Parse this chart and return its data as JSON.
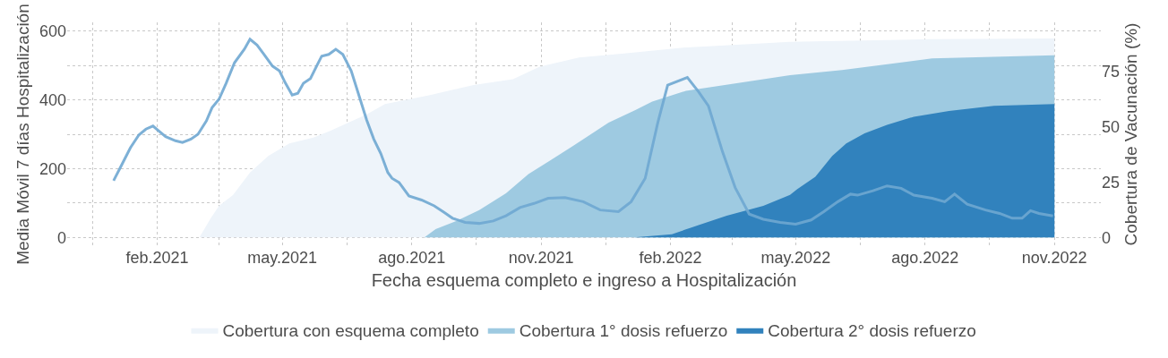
{
  "chart_data": {
    "type": "area",
    "xlabel": "Fecha esquema completo e ingreso a Hospitalización",
    "ylabel": "Media Móvil 7 días Hospitalización",
    "y2label": "Cobertura de Vacunación (%)",
    "xlim": [
      "2020-11-29",
      "2022-12-04"
    ],
    "xticks": [
      {
        "value": "2020-12-17",
        "label": null
      },
      {
        "value": "2021-02-01",
        "label": "feb.2021"
      },
      {
        "value": "2021-03-17",
        "label": null
      },
      {
        "value": "2021-05-01",
        "label": "may.2021"
      },
      {
        "value": "2021-06-16",
        "label": null
      },
      {
        "value": "2021-08-01",
        "label": "ago.2021"
      },
      {
        "value": "2021-09-16",
        "label": null
      },
      {
        "value": "2021-11-01",
        "label": "nov.2021"
      },
      {
        "value": "2021-12-17",
        "label": null
      },
      {
        "value": "2022-02-01",
        "label": "feb.2022"
      },
      {
        "value": "2022-03-17",
        "label": null
      },
      {
        "value": "2022-05-01",
        "label": "may.2022"
      },
      {
        "value": "2022-06-16",
        "label": null
      },
      {
        "value": "2022-08-01",
        "label": "ago.2022"
      },
      {
        "value": "2022-09-16",
        "label": null
      },
      {
        "value": "2022-11-01",
        "label": "nov.2022"
      }
    ],
    "ylim": [
      -25,
      625
    ],
    "yticks": [
      0,
      {
        "value": 100,
        "label": null
      },
      200,
      {
        "value": 300,
        "label": null
      },
      400,
      {
        "value": 500,
        "label": null
      },
      600
    ],
    "y2lim": [
      -3.9,
      97.1
    ],
    "y2ticks": [
      0,
      25,
      50,
      75
    ],
    "grid": true,
    "line_style": "solid",
    "legend": "bottom",
    "series": [
      {
        "name": "Cobertura con esquema completo",
        "axis": "y2",
        "color": "#eef4fa",
        "x": [
          "2021-03-03",
          "2021-03-11",
          "2021-03-17",
          "2021-03-27",
          "2021-04-08",
          "2021-04-21",
          "2021-05-06",
          "2021-05-23",
          "2021-06-04",
          "2021-06-17",
          "2021-06-30",
          "2021-07-13",
          "2021-08-14",
          "2021-09-14",
          "2021-10-12",
          "2021-10-31",
          "2021-11-28",
          "2021-12-30",
          "2022-02-10",
          "2022-04-27",
          "2022-08-04",
          "2022-11-01"
        ],
        "values": [
          0,
          8.6,
          14.3,
          19.2,
          29.3,
          36.8,
          42.5,
          45.1,
          48.1,
          51.9,
          55.6,
          60.2,
          64.3,
          68.8,
          71.4,
          77.1,
          81.2,
          83.1,
          85.7,
          88.3,
          89.5,
          89.8
        ]
      },
      {
        "name": "Cobertura 1° dosis refuerzo",
        "axis": "y2",
        "color": "#9ecae1",
        "x": [
          "2021-08-10",
          "2021-08-18",
          "2021-09-02",
          "2021-09-18",
          "2021-10-07",
          "2021-10-23",
          "2021-11-08",
          "2021-11-24",
          "2021-12-19",
          "2022-01-07",
          "2022-01-19",
          "2022-02-12",
          "2022-03-19",
          "2022-04-27",
          "2022-06-03",
          "2022-08-06",
          "2022-11-01"
        ],
        "values": [
          0,
          3.8,
          7.5,
          12.4,
          19.9,
          28.6,
          35,
          41.4,
          51.9,
          57.5,
          61.3,
          66.2,
          69.5,
          73.3,
          75.6,
          80.8,
          82.3
        ]
      },
      {
        "name": "Cobertura 2° dosis refuerzo",
        "axis": "y2",
        "color": "#3182bd",
        "x": [
          "2022-01-06",
          "2022-02-02",
          "2022-02-21",
          "2022-03-13",
          "2022-04-08",
          "2022-04-27",
          "2022-05-02",
          "2022-05-15",
          "2022-05-27",
          "2022-06-06",
          "2022-06-19",
          "2022-07-05",
          "2022-07-24",
          "2022-08-18",
          "2022-09-19",
          "2022-11-01"
        ],
        "values": [
          0,
          1.5,
          5.6,
          9.8,
          14.3,
          19.2,
          21.8,
          27.4,
          36.8,
          42.5,
          47,
          50.8,
          54.5,
          57.1,
          59.4,
          60.2
        ]
      },
      {
        "type": "line",
        "color": "#6fa8d2",
        "x": [
          "2021-01-01",
          "2021-01-07",
          "2021-01-13",
          "2021-01-19",
          "2021-01-24",
          "2021-01-29",
          "2021-02-02",
          "2021-02-07",
          "2021-02-14",
          "2021-02-19",
          "2021-02-25",
          "2021-03-02",
          "2021-03-08",
          "2021-03-12",
          "2021-03-17",
          "2021-03-22",
          "2021-03-28",
          "2021-04-04",
          "2021-04-08",
          "2021-04-13",
          "2021-04-18",
          "2021-04-24",
          "2021-04-29",
          "2021-05-03",
          "2021-05-08",
          "2021-05-12",
          "2021-05-16",
          "2021-05-21",
          "2021-05-26",
          "2021-05-29",
          "2021-06-03",
          "2021-06-08",
          "2021-06-13",
          "2021-06-19",
          "2021-06-24",
          "2021-06-30",
          "2021-07-05",
          "2021-07-10",
          "2021-07-15",
          "2021-07-18",
          "2021-07-23",
          "2021-07-30",
          "2021-08-08",
          "2021-08-17",
          "2021-08-24",
          "2021-08-30",
          "2021-09-08",
          "2021-09-18",
          "2021-09-28",
          "2021-10-07",
          "2021-10-17",
          "2021-10-27",
          "2021-11-06",
          "2021-11-18",
          "2021-12-01",
          "2021-12-13",
          "2021-12-26",
          "2022-01-04",
          "2022-01-14",
          "2022-01-23",
          "2022-01-30",
          "2022-02-13",
          "2022-02-21",
          "2022-02-28",
          "2022-03-10",
          "2022-03-19",
          "2022-03-29",
          "2022-04-08",
          "2022-04-20",
          "2022-05-01",
          "2022-05-12",
          "2022-05-21",
          "2022-05-31",
          "2022-06-09",
          "2022-06-14",
          "2022-06-25",
          "2022-07-05",
          "2022-07-15",
          "2022-07-24",
          "2022-08-06",
          "2022-08-15",
          "2022-08-22",
          "2022-08-31",
          "2022-09-13",
          "2022-09-23",
          "2022-10-02",
          "2022-10-09",
          "2022-10-15",
          "2022-10-21",
          "2022-10-31"
        ],
        "values": [
          165,
          213,
          261,
          298,
          315,
          324,
          310,
          293,
          281,
          276,
          286,
          300,
          339,
          377,
          402,
          448,
          508,
          547,
          576,
          559,
          532,
          498,
          484,
          450,
          414,
          419,
          448,
          462,
          503,
          527,
          532,
          547,
          532,
          484,
          419,
          341,
          286,
          244,
          189,
          172,
          160,
          121,
          109,
          92,
          73,
          56,
          44,
          41,
          48,
          63,
          87,
          99,
          114,
          116,
          104,
          80,
          75,
          104,
          172,
          334,
          443,
          465,
          423,
          382,
          249,
          145,
          68,
          53,
          44,
          39,
          51,
          75,
          104,
          126,
          123,
          136,
          150,
          143,
          123,
          114,
          104,
          126,
          97,
          80,
          70,
          56,
          56,
          78,
          70,
          63
        ]
      }
    ]
  }
}
